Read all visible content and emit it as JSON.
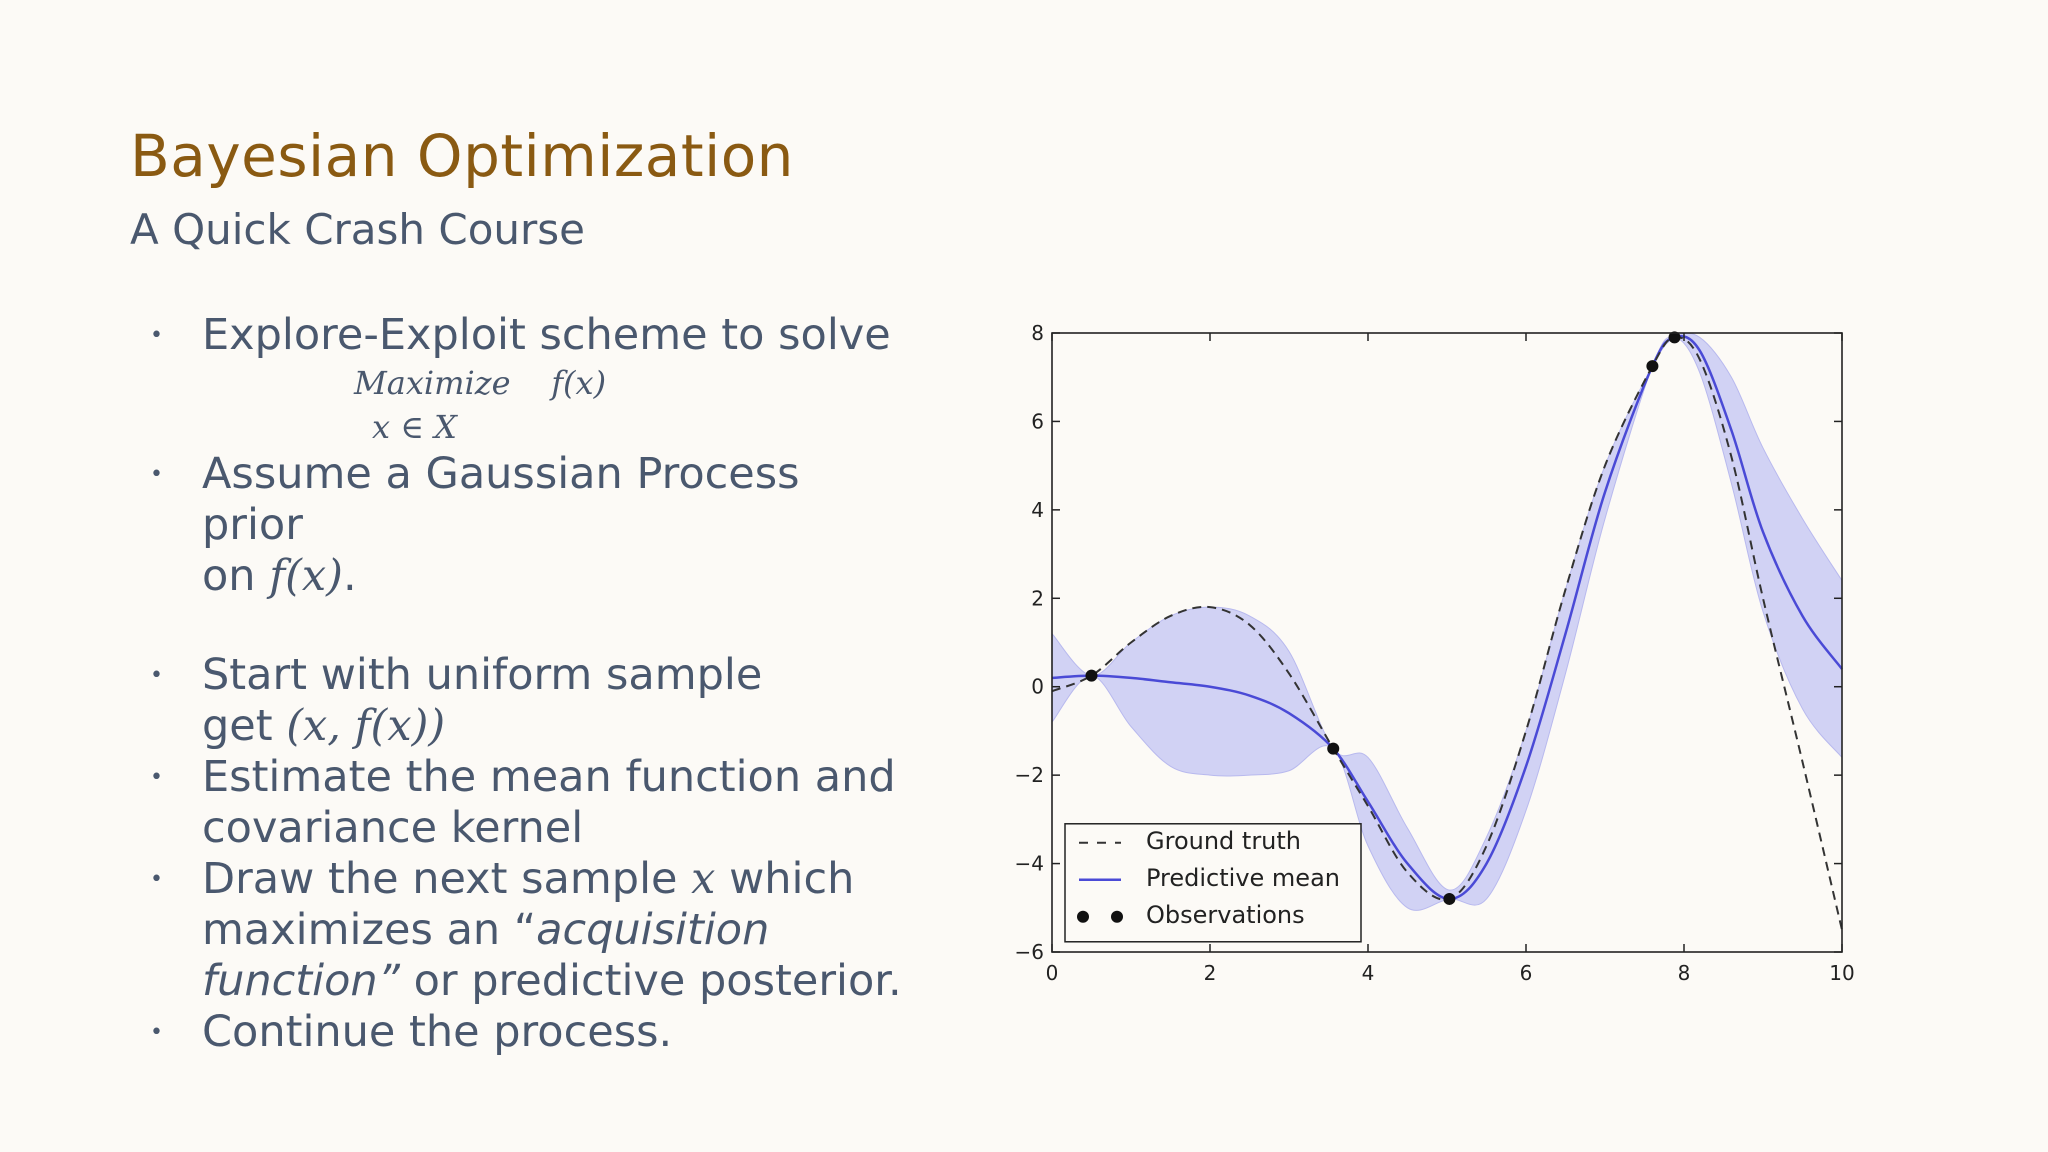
{
  "slide": {
    "title": "Bayesian Optimization",
    "subtitle": "A Quick Crash Course"
  },
  "bullets": {
    "b1": "Explore-Exploit scheme to solve",
    "formula_line1": "Maximize    f(x)",
    "formula_line2": "x  ∈ X",
    "b2_line1": "Assume a Gaussian Process prior",
    "b2_line2_pre": "on ",
    "b2_line2_math": "f(x)",
    "b2_line2_post": ".",
    "b3_line1": "Start with uniform sample",
    "b3_line2_pre": "get ",
    "b3_line2_math": "(x, f(x))",
    "b4_line1": "Estimate the mean function and",
    "b4_line2": "covariance kernel",
    "b5_line1_pre": "Draw the next sample ",
    "b5_line1_math": "x",
    "b5_line1_post": " which",
    "b5_line2_pre": "maximizes an “",
    "b5_line2_em": "acquisition",
    "b5_line3_em": "function”",
    "b5_line3_post": " or predictive posterior.",
    "b6": "Continue the process."
  },
  "colors": {
    "title": "#8a5a12",
    "text": "#4a586e",
    "mean": "#4a4ad6",
    "band": "#c9caf3",
    "truth": "#333333"
  },
  "chart_data": {
    "type": "line",
    "xlim": [
      0,
      10
    ],
    "ylim": [
      -6,
      8
    ],
    "xticks": [
      "0",
      "2",
      "4",
      "6",
      "8",
      "10"
    ],
    "yticks": [
      "−6",
      "−4",
      "−2",
      "0",
      "2",
      "4",
      "6",
      "8"
    ],
    "legend_position": "lower-left",
    "legend": [
      "Ground truth",
      "Predictive mean",
      "Observations"
    ],
    "ground_truth": {
      "x": [
        0,
        0.5,
        1,
        1.5,
        2,
        2.5,
        3,
        3.56,
        4,
        4.5,
        5.03,
        5.5,
        6,
        6.5,
        7,
        7.6,
        7.88,
        8.2,
        8.6,
        9,
        9.5,
        10
      ],
      "y": [
        -0.1,
        0.25,
        1.0,
        1.6,
        1.8,
        1.4,
        0.3,
        -1.4,
        -2.7,
        -4.2,
        -4.8,
        -3.6,
        -1.0,
        2.2,
        5.0,
        7.25,
        7.9,
        7.4,
        5.2,
        2.0,
        -1.7,
        -5.5
      ]
    },
    "predictive_mean": {
      "x": [
        0,
        0.5,
        1,
        1.5,
        2,
        2.5,
        3,
        3.56,
        4,
        4.5,
        5.03,
        5.5,
        6,
        6.5,
        7,
        7.6,
        7.88,
        8.2,
        8.6,
        9,
        9.5,
        10
      ],
      "y": [
        0.2,
        0.25,
        0.2,
        0.1,
        0.0,
        -0.2,
        -0.6,
        -1.4,
        -2.6,
        -4.0,
        -4.8,
        -4.0,
        -1.8,
        1.2,
        4.4,
        7.25,
        7.9,
        7.6,
        5.8,
        3.5,
        1.6,
        0.4
      ]
    },
    "band_upper": [
      1.2,
      0.25,
      1.0,
      1.6,
      1.8,
      1.6,
      0.8,
      -1.4,
      -1.6,
      -3.2,
      -4.6,
      -3.4,
      -1.0,
      2.2,
      5.0,
      7.25,
      7.9,
      7.9,
      7.0,
      5.4,
      3.8,
      2.4
    ],
    "band_lower": [
      -0.8,
      0.25,
      -0.9,
      -1.8,
      -2.0,
      -2.0,
      -1.9,
      -1.4,
      -3.6,
      -5.0,
      -4.8,
      -4.8,
      -2.8,
      0.3,
      3.8,
      7.25,
      7.9,
      7.1,
      4.6,
      1.7,
      -0.5,
      -1.6
    ],
    "observations": {
      "x": [
        0.5,
        3.56,
        5.03,
        7.6,
        7.88
      ],
      "y": [
        0.25,
        -1.4,
        -4.8,
        7.25,
        7.9
      ]
    }
  }
}
